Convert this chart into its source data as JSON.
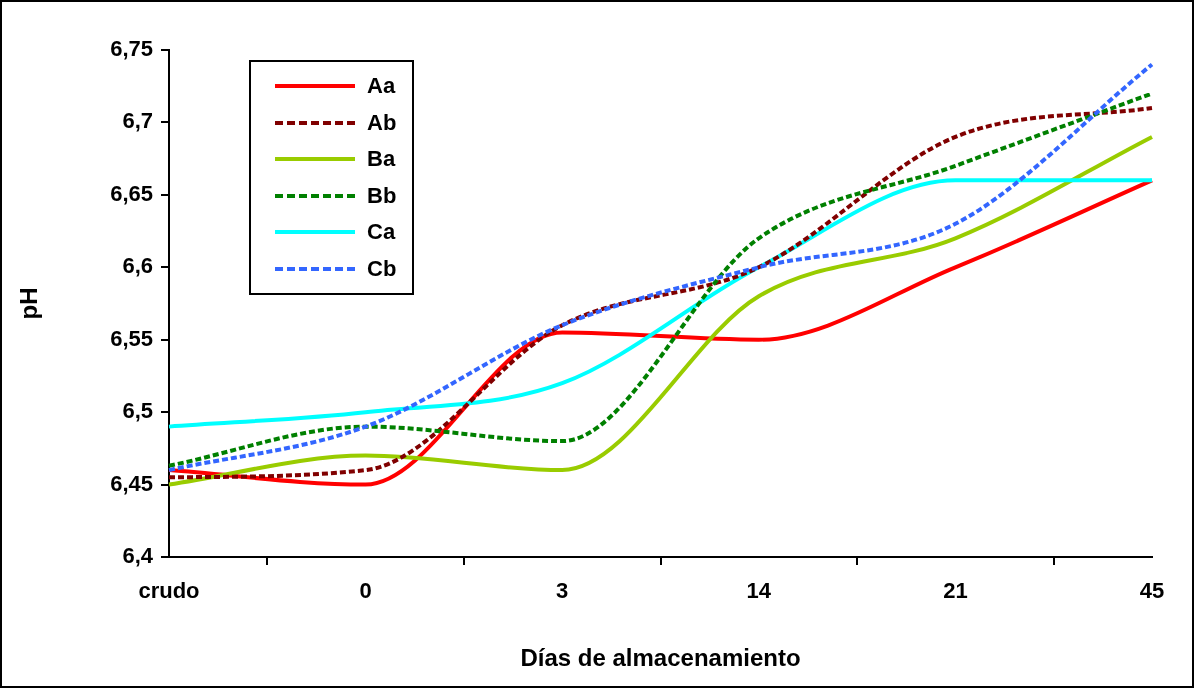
{
  "chart_data": {
    "type": "line",
    "xlabel": "Días de almacenamiento",
    "ylabel": "pH",
    "categories": [
      "crudo",
      "0",
      "3",
      "14",
      "21",
      "45"
    ],
    "ylim": [
      6.4,
      6.75
    ],
    "yticks": [
      {
        "value": 6.4,
        "label": "6,4"
      },
      {
        "value": 6.45,
        "label": "6,45"
      },
      {
        "value": 6.5,
        "label": "6,5"
      },
      {
        "value": 6.55,
        "label": "6,55"
      },
      {
        "value": 6.6,
        "label": "6,6"
      },
      {
        "value": 6.65,
        "label": "6,65"
      },
      {
        "value": 6.7,
        "label": "6,7"
      },
      {
        "value": 6.75,
        "label": "6,75"
      }
    ],
    "grid": false,
    "legend": "top left",
    "marker": "none",
    "series": [
      {
        "name": "Aa",
        "color": "#ff0000",
        "line_style": "solid",
        "values": [
          6.46,
          6.45,
          6.555,
          6.55,
          6.6,
          6.66
        ]
      },
      {
        "name": "Ab",
        "color": "#800000",
        "line_style": "dashed",
        "values": [
          6.455,
          6.46,
          6.56,
          6.6,
          6.69,
          6.71
        ]
      },
      {
        "name": "Ba",
        "color": "#99cc00",
        "line_style": "solid",
        "values": [
          6.45,
          6.47,
          6.46,
          6.58,
          6.62,
          6.69
        ]
      },
      {
        "name": "Bb",
        "color": "#008000",
        "line_style": "dashed",
        "values": [
          6.463,
          6.49,
          6.48,
          6.62,
          6.67,
          6.72
        ]
      },
      {
        "name": "Ca",
        "color": "#00ffff",
        "line_style": "solid",
        "values": [
          6.49,
          6.5,
          6.52,
          6.6,
          6.66,
          6.66
        ]
      },
      {
        "name": "Cb",
        "color": "#3366ff",
        "line_style": "dashed",
        "values": [
          6.46,
          6.49,
          6.56,
          6.6,
          6.63,
          6.74
        ]
      }
    ]
  }
}
